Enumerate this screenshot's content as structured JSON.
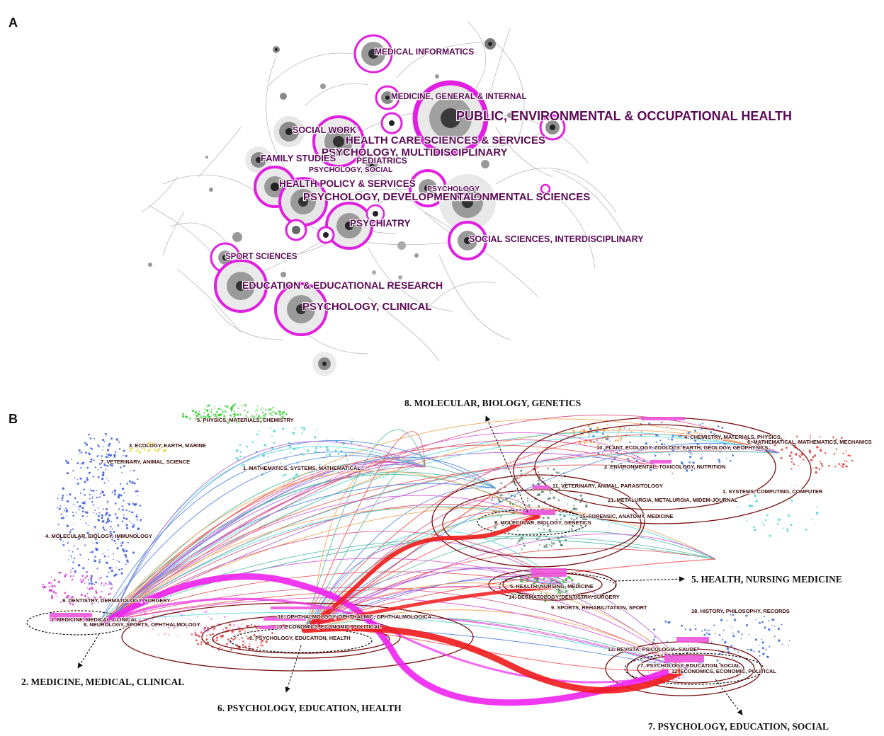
{
  "panel_a": {
    "letter": "A",
    "labels": {
      "medical_informatics": "MEDICAL INFORMATICS",
      "medicine_general": "MEDICINE, GENERAL & INTERNAL",
      "public_health": "PUBLIC, ENVIRONMENTAL & OCCUPATIONAL HEALTH",
      "social_work": "SOCIAL WORK",
      "health_care": "HEALTH CARE SCIENCES & SERVICES",
      "psych_multi": "PSYCHOLOGY, MULTIDISCIPLINARY",
      "family_studies": "FAMILY STUDIES",
      "pediatrics": "PEDIATRICS",
      "psych_social": "PSYCHOLOGY, SOCIAL",
      "health_policy": "HEALTH POLICY & SERVICES",
      "psychology": "PSYCHOLOGY",
      "psych_dev": "PSYCHOLOGY, DEVELOPMENTAL",
      "env_sciences": "ENVIRONMENTAL SCIENCES",
      "psychiatry": "PSYCHIATRY",
      "social_sci": "SOCIAL SCIENCES, INTERDISCIPLINARY",
      "sport_sci": "SPORT SCIENCES",
      "education": "EDUCATION & EDUCATIONAL RESEARCH",
      "psych_clinical": "PSYCHOLOGY, CLINICAL"
    }
  },
  "panel_b": {
    "letter": "B",
    "cluster_labels": {
      "c5_physics": "5. PHYSICS, MATERIALS, CHEMISTRY",
      "c3_ecology": "3. ECOLOGY, EARTH, MARINE",
      "c7_veterinary": "7. VETERINARY, ANIMAL, SCIENCE",
      "c1_math": "1. MATHEMATICS, SYSTEMS, MATHEMATICAL",
      "c4_molecular": "4. MOLECULAR, BIOLOGY, IMMUNOLOGY",
      "c9_dentistry": "9. DENTISTRY, DERMATOLOGY, SURGERY",
      "c2_medicine": "2. MEDICINE, MEDICAL, CLINICAL",
      "c8_neurology": "8. NEUROLOGY, SPORTS, OPHTHALMOLOGY",
      "c16_ophth": "16. OPHTHALMOLOGY, OPHTHALMIC, OPHTHALMOLOGICA",
      "c10_econ": "10. ECONOMICS, ECONOMIC, POLITICAL",
      "c6_psych": "6. PSYCHOLOGY, EDUCATION, HEALTH",
      "r4_chemistry": "4. CHEMISTRY, MATERIALS, PHYSICS",
      "r6_math": "6. MATHEMATICAL, MATHEMATICS, MECHANICS",
      "r10_plant": "10. PLANT, ECOLOGY, ZOOLOGY",
      "r3_earth": "3. EARTH, GEOLOGY, GEOPHYSICS",
      "r2_env": "2. ENVIRONMENTAL, TOXICOLOGY, NUTRITION",
      "r11_vet": "11. VETERINARY, ANIMAL, PARASITOLOGY",
      "r1_systems": "1. SYSTEMS, COMPUTING, COMPUTER",
      "r21_metal": "21. METALURGIA, METALURGIA, MIDEM-JOURNAL",
      "r15_forensic": "15. FORENSIC, ANATOMY, MEDICINE",
      "r8_molecular": "8. MOLECULAR, BIOLOGY, GENETICS",
      "r5_health": "5. HEALTH, NURSING, MEDICINE",
      "r14_derm": "14. DERMATOLOGY, DENTISTRY, SURGERY",
      "r9_sports": "9. SPORTS, REHABILITATION, SPORT",
      "r18_history": "18. HISTORY, PHILOSOPHY, RECORDS",
      "r13_revista": "13. REVISTA, PSICOLOGIA, SAUDE",
      "r7_psych": "7. PSYCHOLOGY, EDUCATION, SOCIAL",
      "r12_econ": "12. ECONOMICS, ECONOMIC, POLITICAL"
    },
    "callouts": {
      "molecular": "8. MOLECULAR, BIOLOGY, GENETICS",
      "health": "5. HEALTH, NURSING MEDICINE",
      "medicine": "2. MEDICINE, MEDICAL, CLINICAL",
      "psych_health": "6. PSYCHOLOGY, EDUCATION, HEALTH",
      "psych_social": "7. PSYCHOLOGY, EDUCATION, SOCIAL"
    }
  },
  "colors": {
    "ring": "#e020e0",
    "label": "#5a0a55",
    "thick_magenta": "#ee22ee",
    "thick_red": "#ee1b1b",
    "ellipse": "#7a1010"
  }
}
